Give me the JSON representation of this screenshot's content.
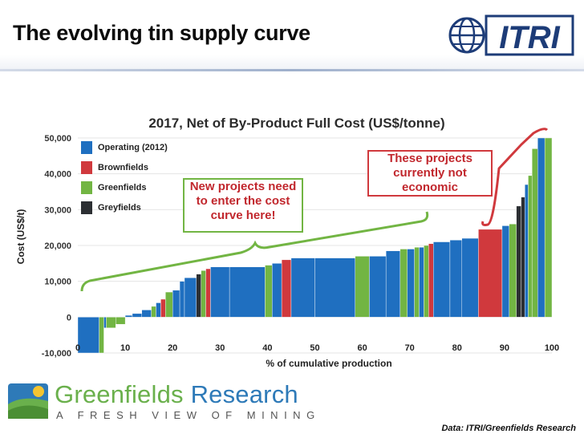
{
  "header": {
    "title": "The evolving tin supply curve",
    "logo_text": "ITRI"
  },
  "footer": {
    "brand_green": "Greenfields",
    "brand_blue": "Research",
    "tagline": "A FRESH VIEW OF MINING",
    "source": "Data: ITRI/Greenfields Research"
  },
  "colors": {
    "Operating (2012)": "#1f6fc0",
    "Brownfields": "#d0393d",
    "Greenfields": "#72b543",
    "Greyfields": "#2c2f33",
    "callout": "#6fb63f",
    "callout_text_red": "#c1272d",
    "callout_text_green": "#c1272d"
  },
  "callouts": {
    "uneconomic": "These projects currently not economic",
    "new_projects": "New projects need to enter the cost curve here!"
  },
  "chart_data": {
    "type": "bar",
    "title": "2017, Net of By-Product Full Cost (US$/tonne)",
    "xlabel": "% of cumulative production",
    "ylabel": "Cost (US$/t)",
    "xlim": [
      0,
      100
    ],
    "ylim": [
      -10000,
      50000
    ],
    "x_ticks": [
      0,
      10,
      20,
      30,
      40,
      50,
      60,
      70,
      80,
      90,
      100
    ],
    "y_ticks": [
      -10000,
      0,
      10000,
      20000,
      30000,
      40000,
      50000
    ],
    "y_tick_labels": [
      "-10,000",
      "0",
      "10,000",
      "20,000",
      "30,000",
      "40,000",
      "50,000"
    ],
    "legend": [
      "Operating (2012)",
      "Brownfields",
      "Greenfields",
      "Greyfields"
    ],
    "legend_position": "top-left",
    "segments": [
      {
        "start": 0.0,
        "end": 4.5,
        "cost": -10000,
        "category": "Operating (2012)"
      },
      {
        "start": 4.5,
        "end": 5.5,
        "cost": -10000,
        "category": "Greenfields"
      },
      {
        "start": 5.5,
        "end": 6.0,
        "cost": -3000,
        "category": "Operating (2012)"
      },
      {
        "start": 6.0,
        "end": 8.0,
        "cost": -3000,
        "category": "Greenfields"
      },
      {
        "start": 8.0,
        "end": 10.0,
        "cost": -2000,
        "category": "Greenfields"
      },
      {
        "start": 10.0,
        "end": 11.5,
        "cost": 500,
        "category": "Operating (2012)"
      },
      {
        "start": 11.5,
        "end": 13.5,
        "cost": 1000,
        "category": "Operating (2012)"
      },
      {
        "start": 13.5,
        "end": 15.5,
        "cost": 2000,
        "category": "Operating (2012)"
      },
      {
        "start": 15.5,
        "end": 16.5,
        "cost": 3000,
        "category": "Greenfields"
      },
      {
        "start": 16.5,
        "end": 17.5,
        "cost": 4000,
        "category": "Operating (2012)"
      },
      {
        "start": 17.5,
        "end": 18.5,
        "cost": 5000,
        "category": "Brownfields"
      },
      {
        "start": 18.5,
        "end": 20.0,
        "cost": 7000,
        "category": "Greenfields"
      },
      {
        "start": 20.0,
        "end": 21.5,
        "cost": 7500,
        "category": "Operating (2012)"
      },
      {
        "start": 21.5,
        "end": 22.5,
        "cost": 10000,
        "category": "Operating (2012)"
      },
      {
        "start": 22.5,
        "end": 25.0,
        "cost": 11000,
        "category": "Operating (2012)"
      },
      {
        "start": 25.0,
        "end": 26.0,
        "cost": 12000,
        "category": "Greyfields"
      },
      {
        "start": 26.0,
        "end": 27.0,
        "cost": 13000,
        "category": "Greenfields"
      },
      {
        "start": 27.0,
        "end": 28.0,
        "cost": 13500,
        "category": "Brownfields"
      },
      {
        "start": 28.0,
        "end": 32.0,
        "cost": 14000,
        "category": "Operating (2012)"
      },
      {
        "start": 32.0,
        "end": 39.5,
        "cost": 14000,
        "category": "Operating (2012)"
      },
      {
        "start": 39.5,
        "end": 41.0,
        "cost": 14500,
        "category": "Greenfields"
      },
      {
        "start": 41.0,
        "end": 43.0,
        "cost": 15000,
        "category": "Operating (2012)"
      },
      {
        "start": 43.0,
        "end": 45.0,
        "cost": 16000,
        "category": "Brownfields"
      },
      {
        "start": 45.0,
        "end": 50.0,
        "cost": 16500,
        "category": "Operating (2012)"
      },
      {
        "start": 50.0,
        "end": 58.5,
        "cost": 16500,
        "category": "Operating (2012)"
      },
      {
        "start": 58.5,
        "end": 61.5,
        "cost": 17000,
        "category": "Greenfields"
      },
      {
        "start": 61.5,
        "end": 65.0,
        "cost": 17000,
        "category": "Operating (2012)"
      },
      {
        "start": 65.0,
        "end": 68.0,
        "cost": 18500,
        "category": "Operating (2012)"
      },
      {
        "start": 68.0,
        "end": 69.5,
        "cost": 19000,
        "category": "Greenfields"
      },
      {
        "start": 69.5,
        "end": 71.0,
        "cost": 19000,
        "category": "Operating (2012)"
      },
      {
        "start": 71.0,
        "end": 72.0,
        "cost": 19500,
        "category": "Greenfields"
      },
      {
        "start": 72.0,
        "end": 73.0,
        "cost": 19500,
        "category": "Operating (2012)"
      },
      {
        "start": 73.0,
        "end": 74.0,
        "cost": 20000,
        "category": "Greenfields"
      },
      {
        "start": 74.0,
        "end": 75.0,
        "cost": 20500,
        "category": "Brownfields"
      },
      {
        "start": 75.0,
        "end": 78.5,
        "cost": 21000,
        "category": "Operating (2012)"
      },
      {
        "start": 78.5,
        "end": 81.0,
        "cost": 21500,
        "category": "Operating (2012)"
      },
      {
        "start": 81.0,
        "end": 84.5,
        "cost": 22000,
        "category": "Operating (2012)"
      },
      {
        "start": 84.5,
        "end": 89.5,
        "cost": 24500,
        "category": "Brownfields"
      },
      {
        "start": 89.5,
        "end": 91.0,
        "cost": 25500,
        "category": "Operating (2012)"
      },
      {
        "start": 91.0,
        "end": 92.5,
        "cost": 26000,
        "category": "Greenfields"
      },
      {
        "start": 92.5,
        "end": 93.5,
        "cost": 31000,
        "category": "Greyfields"
      },
      {
        "start": 93.5,
        "end": 94.3,
        "cost": 33500,
        "category": "Greyfields"
      },
      {
        "start": 94.3,
        "end": 95.0,
        "cost": 37000,
        "category": "Operating (2012)"
      },
      {
        "start": 95.0,
        "end": 95.8,
        "cost": 39500,
        "category": "Greenfields"
      },
      {
        "start": 95.8,
        "end": 97.0,
        "cost": 47000,
        "category": "Greenfields"
      },
      {
        "start": 97.0,
        "end": 98.5,
        "cost": 50000,
        "category": "Operating (2012)"
      },
      {
        "start": 98.5,
        "end": 100.0,
        "cost": 50000,
        "category": "Greenfields"
      }
    ]
  }
}
